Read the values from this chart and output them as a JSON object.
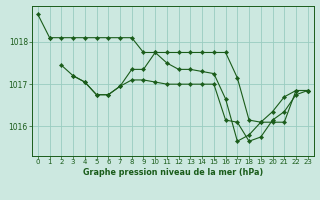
{
  "background_color": "#cce8e0",
  "line_color": "#1a5c1a",
  "grid_color": "#99ccc0",
  "xlabel": "Graphe pression niveau de la mer (hPa)",
  "ylim": [
    1015.3,
    1018.85
  ],
  "xlim": [
    -0.5,
    23.5
  ],
  "yticks": [
    1016,
    1017,
    1018
  ],
  "xticks": [
    0,
    1,
    2,
    3,
    4,
    5,
    6,
    7,
    8,
    9,
    10,
    11,
    12,
    13,
    14,
    15,
    16,
    17,
    18,
    19,
    20,
    21,
    22,
    23
  ],
  "series": [
    {
      "x": [
        0,
        1,
        2,
        3,
        4,
        5,
        6,
        7,
        8,
        9,
        10,
        11,
        12,
        13,
        14,
        15,
        16,
        17,
        18,
        19,
        20,
        21,
        22,
        23
      ],
      "y": [
        1018.65,
        1018.1,
        null,
        null,
        null,
        null,
        null,
        null,
        null,
        null,
        null,
        null,
        null,
        null,
        null,
        null,
        null,
        null,
        null,
        null,
        null,
        null,
        null,
        null
      ]
    },
    {
      "x": [
        1,
        2,
        3,
        4,
        5,
        6,
        7,
        8,
        9,
        10,
        11,
        12,
        13,
        14,
        15,
        16,
        17,
        18,
        19,
        20,
        21,
        22,
        23
      ],
      "y": [
        1018.1,
        1018.1,
        1018.1,
        1018.1,
        1018.1,
        1018.1,
        1018.1,
        1018.1,
        1017.75,
        1017.75,
        1017.75,
        1017.75,
        1017.75,
        1017.75,
        1017.75,
        1017.75,
        1017.15,
        1016.15,
        1016.1,
        1016.1,
        1016.1,
        1016.85,
        1016.85
      ]
    },
    {
      "x": [
        2,
        3,
        4,
        5,
        6,
        7,
        8,
        9,
        10,
        11,
        12,
        13,
        14,
        15,
        16,
        17,
        18,
        19,
        20,
        21,
        22,
        23
      ],
      "y": [
        1017.45,
        1017.2,
        1017.05,
        1016.75,
        1016.75,
        1016.95,
        1017.35,
        1017.35,
        1017.75,
        1017.5,
        1017.35,
        1017.35,
        1017.3,
        1017.25,
        1016.65,
        1015.65,
        1015.8,
        1016.1,
        1016.35,
        1016.7,
        1016.85,
        1016.85
      ]
    },
    {
      "x": [
        3,
        4,
        5,
        6,
        7,
        8,
        9,
        10,
        11,
        12,
        13,
        14,
        15,
        16,
        17,
        18,
        19,
        20,
        21,
        22,
        23
      ],
      "y": [
        1017.2,
        1017.05,
        1016.75,
        1016.75,
        1016.95,
        1017.1,
        1017.1,
        1017.05,
        1017.0,
        1017.0,
        1017.0,
        1017.0,
        1017.0,
        1016.15,
        1016.1,
        1015.65,
        1015.75,
        1016.15,
        1016.35,
        1016.75,
        1016.85
      ]
    }
  ]
}
